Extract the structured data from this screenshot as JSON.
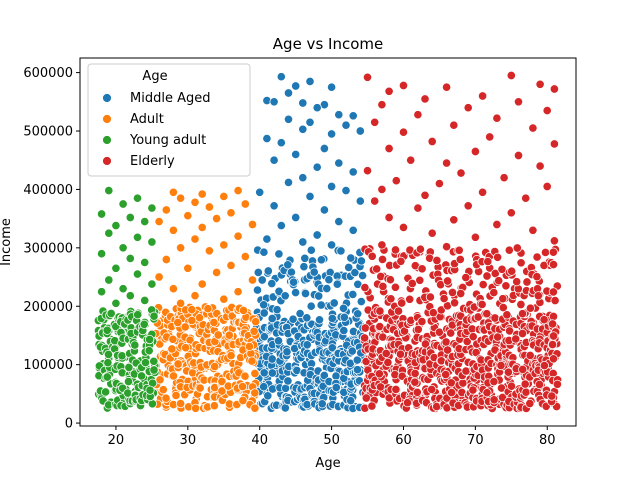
{
  "chart_data": {
    "type": "scatter",
    "title": "Age vs Income",
    "xlabel": "Age",
    "ylabel": "Income",
    "xlim": [
      15,
      84
    ],
    "ylim": [
      -5000,
      625000
    ],
    "xticks": [
      20,
      30,
      40,
      50,
      60,
      70,
      80
    ],
    "yticks": [
      0,
      100000,
      200000,
      300000,
      400000,
      500000,
      600000
    ],
    "legend": {
      "title": "Age",
      "position": "top-left",
      "entries": [
        "Middle Aged",
        "Adult",
        "Young adult",
        "Elderly"
      ]
    },
    "series": [
      {
        "name": "Middle Aged",
        "color": "#1f77b4",
        "age_range": [
          40,
          54
        ],
        "dense_income_range": [
          25000,
          175000
        ],
        "mid_income_range": [
          175000,
          300000
        ],
        "sparse_income_range": [
          300000,
          595000
        ],
        "points": [
          [
            43,
            593000
          ],
          [
            47,
            585000
          ],
          [
            45,
            577000
          ],
          [
            50,
            575000
          ],
          [
            44,
            565000
          ],
          [
            41,
            552000
          ],
          [
            42,
            550000
          ],
          [
            46,
            548000
          ],
          [
            49,
            545000
          ],
          [
            48,
            540000
          ],
          [
            51,
            528000
          ],
          [
            53,
            526000
          ],
          [
            44,
            520000
          ],
          [
            47,
            515000
          ],
          [
            52,
            510000
          ],
          [
            46,
            503000
          ],
          [
            54,
            500000
          ],
          [
            50,
            495000
          ],
          [
            41,
            487000
          ],
          [
            43,
            480000
          ],
          [
            49,
            470000
          ],
          [
            45,
            460000
          ],
          [
            42,
            450000
          ],
          [
            51,
            445000
          ],
          [
            48,
            438000
          ],
          [
            53,
            430000
          ],
          [
            46,
            420000
          ],
          [
            44,
            412000
          ],
          [
            50,
            405000
          ],
          [
            52,
            398000
          ],
          [
            40,
            395000
          ],
          [
            47,
            388000
          ],
          [
            54,
            380000
          ],
          [
            42,
            372000
          ],
          [
            49,
            365000
          ],
          [
            45,
            352000
          ],
          [
            51,
            345000
          ],
          [
            43,
            338000
          ],
          [
            53,
            330000
          ],
          [
            48,
            322000
          ],
          [
            41,
            315000
          ],
          [
            46,
            310000
          ],
          [
            50,
            305000
          ]
        ]
      },
      {
        "name": "Adult",
        "color": "#ff7f0e",
        "age_range": [
          26,
          39
        ],
        "dense_income_range": [
          25000,
          200000
        ],
        "sparse_income_range": [
          200000,
          400000
        ],
        "points": [
          [
            28,
            395000
          ],
          [
            37,
            398000
          ],
          [
            32,
            392000
          ],
          [
            35,
            388000
          ],
          [
            29,
            385000
          ],
          [
            31,
            378000
          ],
          [
            38,
            375000
          ],
          [
            33,
            370000
          ],
          [
            27,
            365000
          ],
          [
            36,
            360000
          ],
          [
            30,
            355000
          ],
          [
            34,
            350000
          ],
          [
            26,
            345000
          ],
          [
            39,
            340000
          ],
          [
            32,
            335000
          ],
          [
            28,
            330000
          ],
          [
            37,
            320000
          ],
          [
            31,
            315000
          ],
          [
            35,
            305000
          ],
          [
            29,
            300000
          ],
          [
            33,
            295000
          ],
          [
            38,
            285000
          ],
          [
            27,
            280000
          ],
          [
            36,
            270000
          ],
          [
            30,
            265000
          ],
          [
            34,
            258000
          ],
          [
            26,
            250000
          ],
          [
            39,
            245000
          ],
          [
            32,
            238000
          ],
          [
            28,
            230000
          ],
          [
            37,
            225000
          ],
          [
            31,
            218000
          ],
          [
            35,
            212000
          ],
          [
            29,
            205000
          ]
        ]
      },
      {
        "name": "Young adult",
        "color": "#2ca02c",
        "age_range": [
          18,
          25
        ],
        "dense_income_range": [
          25000,
          195000
        ],
        "sparse_income_range": [
          195000,
          400000
        ],
        "points": [
          [
            19,
            398000
          ],
          [
            23,
            385000
          ],
          [
            21,
            375000
          ],
          [
            25,
            368000
          ],
          [
            18,
            358000
          ],
          [
            22,
            352000
          ],
          [
            24,
            345000
          ],
          [
            20,
            338000
          ],
          [
            19,
            325000
          ],
          [
            23,
            318000
          ],
          [
            25,
            310000
          ],
          [
            21,
            300000
          ],
          [
            18,
            290000
          ],
          [
            22,
            282000
          ],
          [
            24,
            275000
          ],
          [
            20,
            265000
          ],
          [
            23,
            255000
          ],
          [
            19,
            245000
          ],
          [
            25,
            238000
          ],
          [
            21,
            230000
          ],
          [
            18,
            225000
          ],
          [
            22,
            218000
          ],
          [
            24,
            210000
          ],
          [
            20,
            205000
          ]
        ]
      },
      {
        "name": "Elderly",
        "color": "#d62728",
        "age_range": [
          55,
          81
        ],
        "dense_income_range": [
          25000,
          185000
        ],
        "mid_income_range": [
          185000,
          300000
        ],
        "sparse_income_range": [
          300000,
          595000
        ],
        "points": [
          [
            75,
            595000
          ],
          [
            55,
            592000
          ],
          [
            79,
            580000
          ],
          [
            60,
            578000
          ],
          [
            66,
            575000
          ],
          [
            81,
            572000
          ],
          [
            58,
            568000
          ],
          [
            71,
            560000
          ],
          [
            63,
            555000
          ],
          [
            76,
            550000
          ],
          [
            57,
            545000
          ],
          [
            69,
            540000
          ],
          [
            80,
            535000
          ],
          [
            62,
            528000
          ],
          [
            73,
            522000
          ],
          [
            56,
            515000
          ],
          [
            67,
            510000
          ],
          [
            78,
            505000
          ],
          [
            60,
            498000
          ],
          [
            72,
            490000
          ],
          [
            64,
            482000
          ],
          [
            81,
            478000
          ],
          [
            58,
            470000
          ],
          [
            70,
            465000
          ],
          [
            76,
            458000
          ],
          [
            61,
            450000
          ],
          [
            66,
            445000
          ],
          [
            79,
            440000
          ],
          [
            55,
            432000
          ],
          [
            68,
            428000
          ],
          [
            74,
            420000
          ],
          [
            59,
            415000
          ],
          [
            65,
            410000
          ],
          [
            80,
            405000
          ],
          [
            57,
            400000
          ],
          [
            71,
            395000
          ],
          [
            63,
            390000
          ],
          [
            77,
            385000
          ],
          [
            56,
            380000
          ],
          [
            69,
            372000
          ],
          [
            62,
            368000
          ],
          [
            75,
            360000
          ],
          [
            58,
            352000
          ],
          [
            67,
            348000
          ],
          [
            73,
            340000
          ],
          [
            60,
            335000
          ],
          [
            78,
            330000
          ],
          [
            64,
            325000
          ],
          [
            70,
            318000
          ],
          [
            81,
            312000
          ],
          [
            57,
            305000
          ],
          [
            66,
            302000
          ]
        ]
      }
    ]
  }
}
